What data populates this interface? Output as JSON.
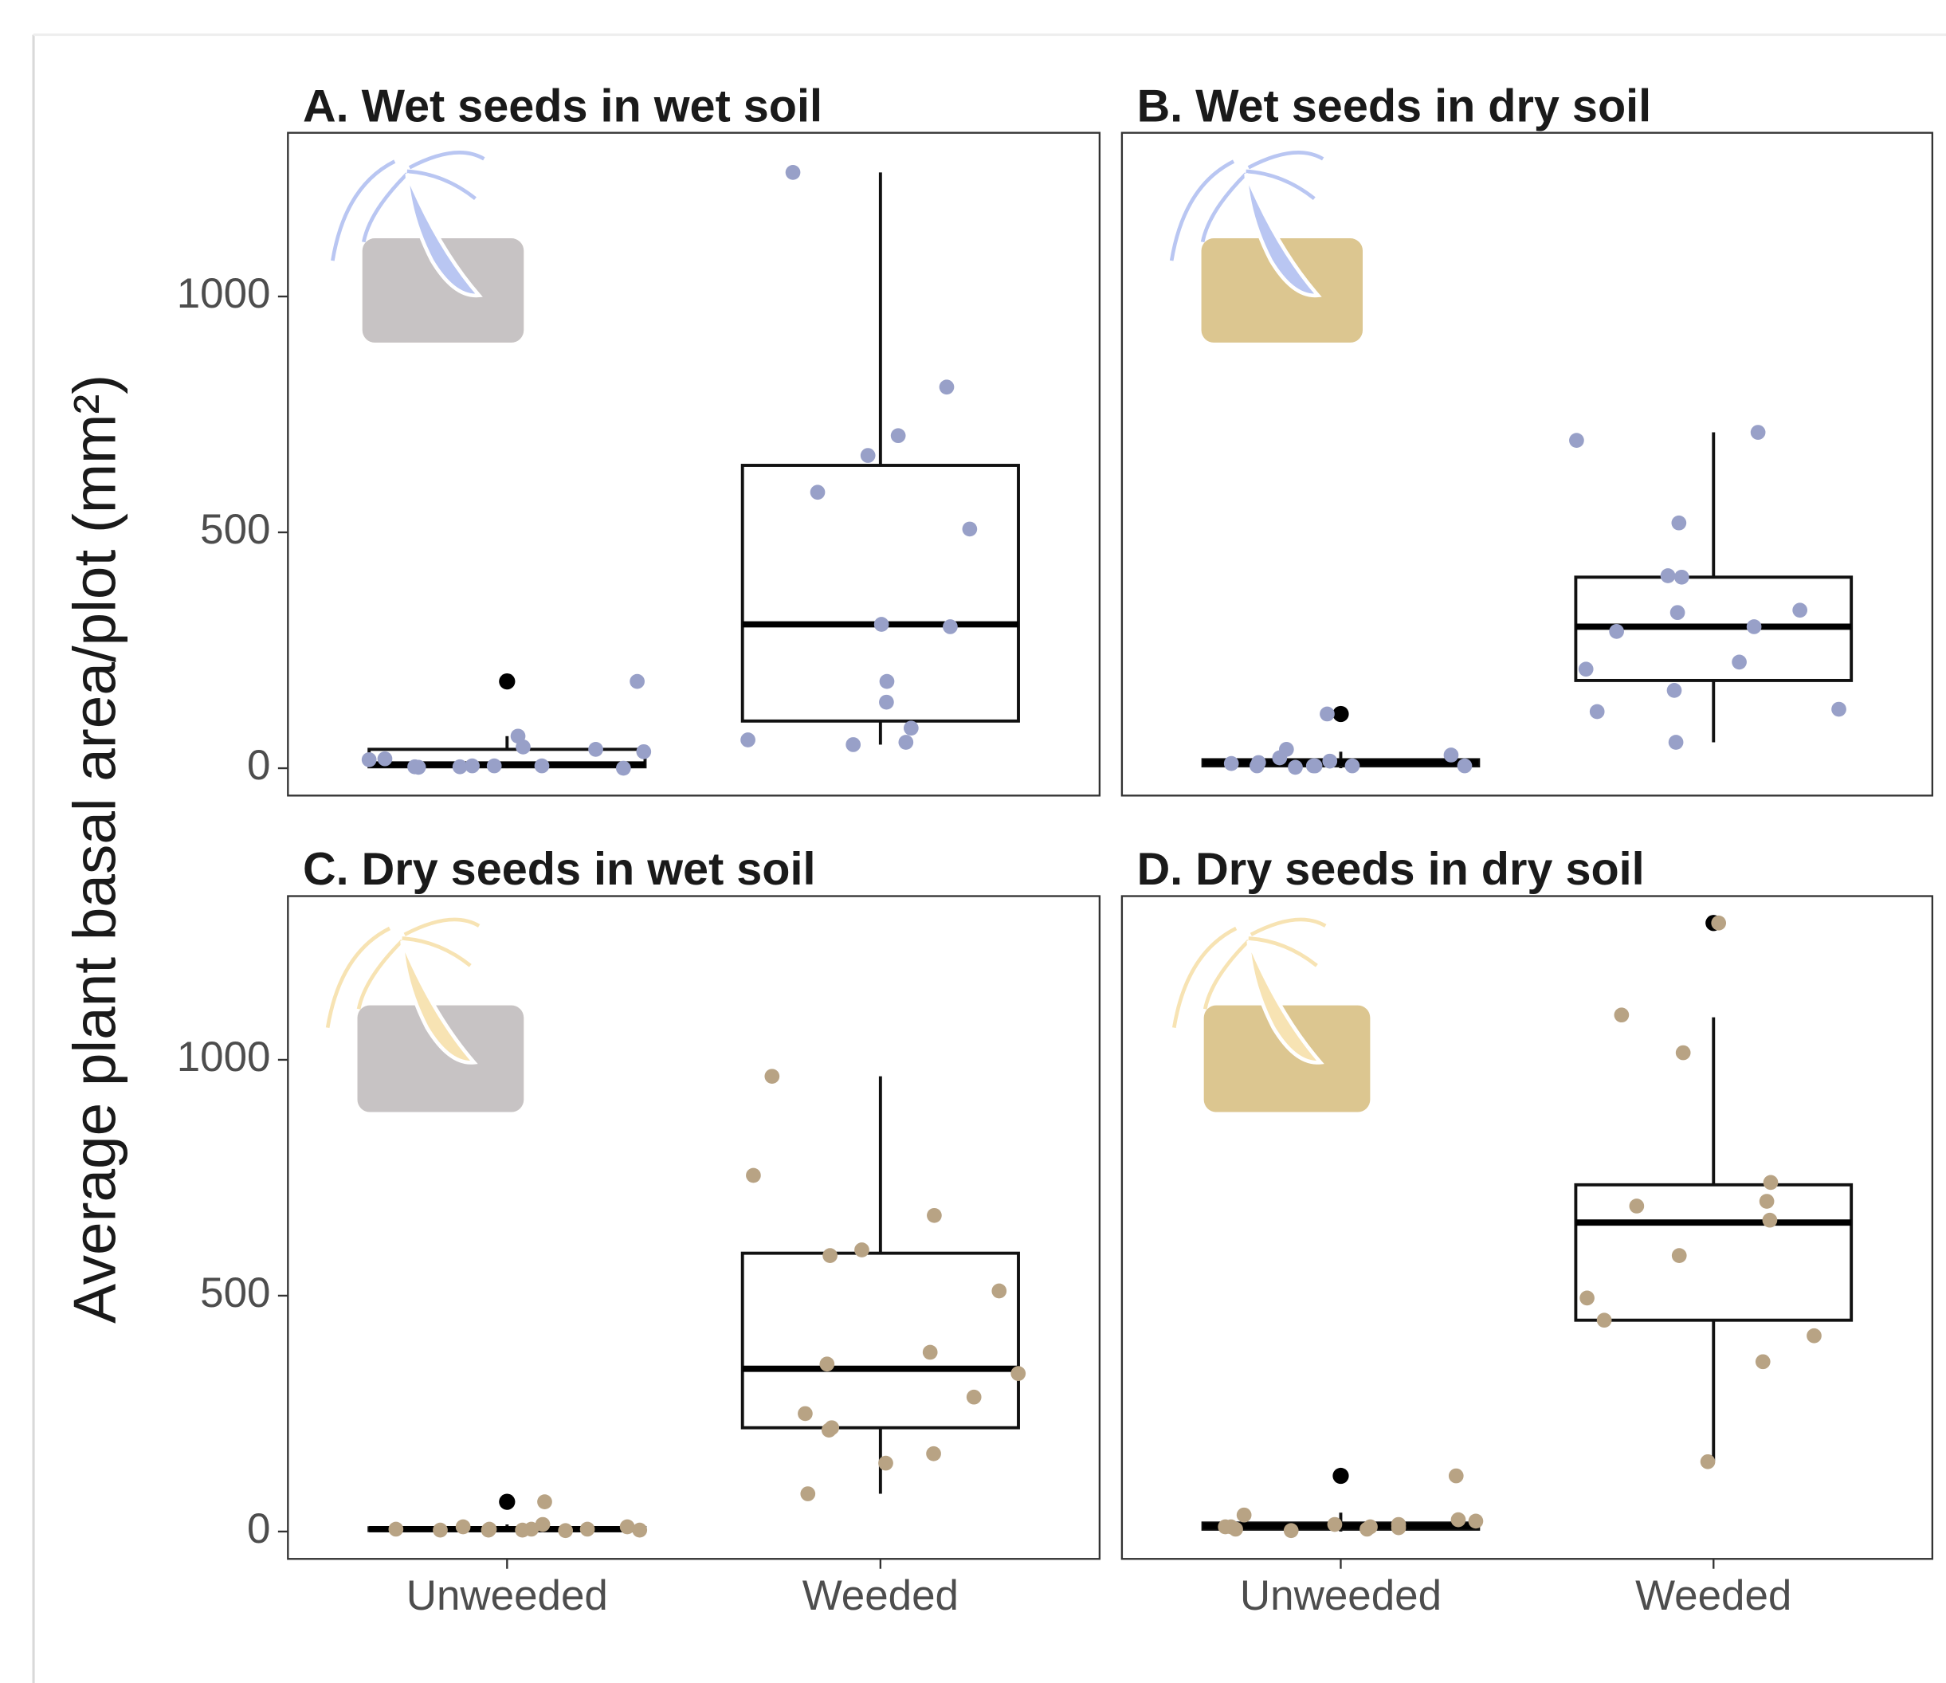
{
  "y_label": "Average plant basal area/plot (mm²)",
  "chart_data": [
    {
      "type": "box",
      "title": "A. Wet seeds in wet soil",
      "ylim": [
        -58,
        1347
      ],
      "yticks": [
        0,
        500,
        1000
      ],
      "groups": [
        {
          "color": "#98a0c8",
          "whisker_low": 0,
          "q1": 3,
          "median": 8,
          "q3": 40,
          "whisker_high": 68,
          "outliers": [
            184
          ],
          "points": [
            18,
            0,
            20,
            45,
            5,
            5,
            5,
            3,
            3,
            68,
            184,
            40,
            2,
            35
          ]
        },
        {
          "color": "#98a0c8",
          "whisker_low": 50,
          "q1": 100,
          "median": 305,
          "q3": 642,
          "whisker_high": 1263,
          "outliers": [],
          "points": [
            1263,
            808,
            705,
            663,
            585,
            507,
            300,
            305,
            184,
            140,
            60,
            55,
            85,
            50
          ]
        }
      ]
    },
    {
      "type": "box",
      "title": "B. Wet seeds in dry soil",
      "ylim": [
        -58,
        1347
      ],
      "groups": [
        {
          "color": "#98a0c8",
          "whisker_low": 0,
          "q1": 5,
          "median": 12,
          "q3": 18,
          "whisker_high": 35,
          "outliers": [
            115
          ],
          "points": [
            10,
            12,
            5,
            5,
            5,
            5,
            115,
            40,
            28,
            22,
            5,
            15,
            2
          ]
        },
        {
          "color": "#98a0c8",
          "whisker_low": 55,
          "q1": 186,
          "median": 300,
          "q3": 405,
          "whisker_high": 712,
          "outliers": [],
          "points": [
            695,
            712,
            520,
            408,
            300,
            290,
            405,
            330,
            335,
            225,
            210,
            165,
            125,
            120,
            55
          ]
        }
      ]
    },
    {
      "type": "box",
      "title": "C. Dry seeds in wet soil",
      "ylim": [
        -58,
        1347
      ],
      "yticks": [
        0,
        500,
        1000
      ],
      "categories": [
        "Unweeded",
        "Weeded"
      ],
      "groups": [
        {
          "color": "#b8a384",
          "whisker_low": 0,
          "q1": 2,
          "median": 5,
          "q3": 8,
          "whisker_high": 15,
          "outliers": [
            63
          ],
          "points": [
            5,
            3,
            10,
            15,
            63,
            5,
            10,
            3,
            3,
            5,
            5,
            3,
            2
          ]
        },
        {
          "color": "#b8a384",
          "whisker_low": 80,
          "q1": 220,
          "median": 345,
          "q3": 590,
          "whisker_high": 965,
          "outliers": [],
          "points": [
            965,
            755,
            670,
            597,
            585,
            510,
            380,
            355,
            335,
            285,
            250,
            220,
            215,
            165,
            145,
            80
          ]
        }
      ]
    },
    {
      "type": "box",
      "title": "D. Dry seeds in dry soil",
      "ylim": [
        -58,
        1347
      ],
      "categories": [
        "Unweeded",
        "Weeded"
      ],
      "groups": [
        {
          "color": "#b8a384",
          "whisker_low": 0,
          "q1": 5,
          "median": 12,
          "q3": 18,
          "whisker_high": 40,
          "outliers": [
            118
          ],
          "points": [
            2,
            5,
            118,
            10,
            25,
            15,
            35,
            22,
            15,
            10,
            8,
            5,
            10
          ]
        },
        {
          "color": "#b8a384",
          "whisker_low": 150,
          "q1": 448,
          "median": 655,
          "q3": 735,
          "whisker_high": 1090,
          "outliers": [
            1290
          ],
          "points": [
            1290,
            1095,
            1015,
            740,
            700,
            690,
            660,
            585,
            495,
            448,
            415,
            360,
            148
          ]
        }
      ]
    }
  ]
}
